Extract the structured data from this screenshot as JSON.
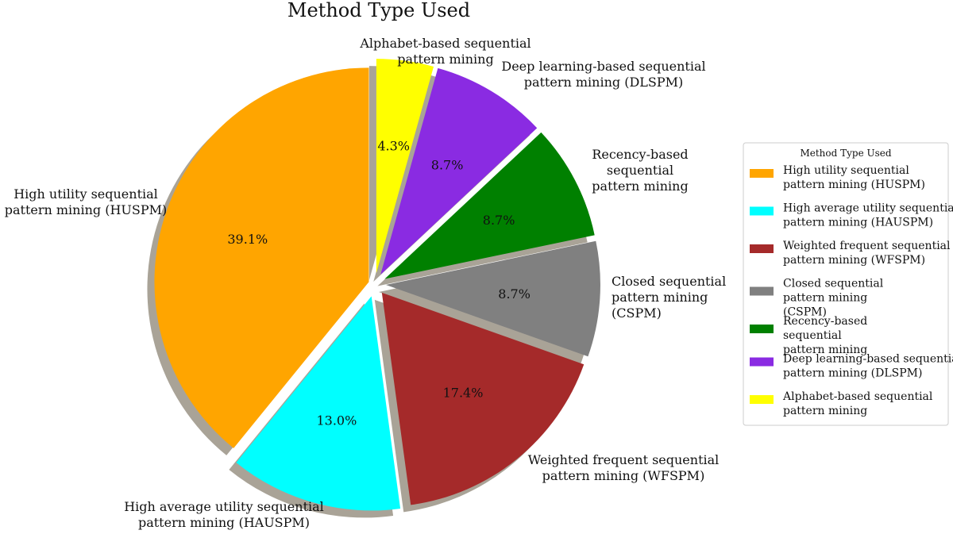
{
  "chart_data": {
    "type": "pie",
    "title": "Method Type Used",
    "start_angle_deg": 90,
    "direction": "counterclockwise",
    "shadow": true,
    "explode": true,
    "legend": {
      "title": "Method Type Used",
      "placement": "right",
      "entries": [
        {
          "lines": [
            "High utility sequential",
            "pattern mining (HUSPM)"
          ],
          "color": "#FFA500"
        },
        {
          "lines": [
            "High average utility sequential",
            "pattern mining (HAUSPM)"
          ],
          "color": "#00FFFF"
        },
        {
          "lines": [
            "Weighted frequent sequential",
            "pattern mining (WFSPM)"
          ],
          "color": "#A52A2A"
        },
        {
          "lines": [
            "Closed sequential",
            "pattern mining",
            "(CSPM)"
          ],
          "color": "#808080"
        },
        {
          "lines": [
            "Recency-based",
            "sequential",
            "pattern mining"
          ],
          "color": "#008000"
        },
        {
          "lines": [
            "Deep learning-based sequential",
            "pattern mining (DLSPM)"
          ],
          "color": "#8A2BE2"
        },
        {
          "lines": [
            "Alphabet-based sequential",
            "pattern mining"
          ],
          "color": "#FFFF00"
        }
      ]
    },
    "slices": [
      {
        "label_lines": [
          "High utility sequential",
          "pattern mining (HUSPM)"
        ],
        "value": 39.1,
        "pct_text": "39.1%",
        "color": "#FFA500"
      },
      {
        "label_lines": [
          "High average utility sequential",
          "pattern mining (HAUSPM)"
        ],
        "value": 13.0,
        "pct_text": "13.0%",
        "color": "#00FFFF"
      },
      {
        "label_lines": [
          "Weighted frequent sequential",
          "pattern mining (WFSPM)"
        ],
        "value": 17.4,
        "pct_text": "17.4%",
        "color": "#A52A2A"
      },
      {
        "label_lines": [
          "Closed sequential",
          "pattern mining",
          "(CSPM)"
        ],
        "value": 8.7,
        "pct_text": "8.7%",
        "color": "#808080"
      },
      {
        "label_lines": [
          "Recency-based",
          "sequential",
          "pattern mining"
        ],
        "value": 8.7,
        "pct_text": "8.7%",
        "color": "#008000"
      },
      {
        "label_lines": [
          "Deep learning-based sequential",
          "pattern mining (DLSPM)"
        ],
        "value": 8.7,
        "pct_text": "8.7%",
        "color": "#8A2BE2"
      },
      {
        "label_lines": [
          "Alphabet-based sequential",
          "pattern mining"
        ],
        "value": 4.3,
        "pct_text": "4.3%",
        "color": "#FFFF00"
      }
    ]
  }
}
